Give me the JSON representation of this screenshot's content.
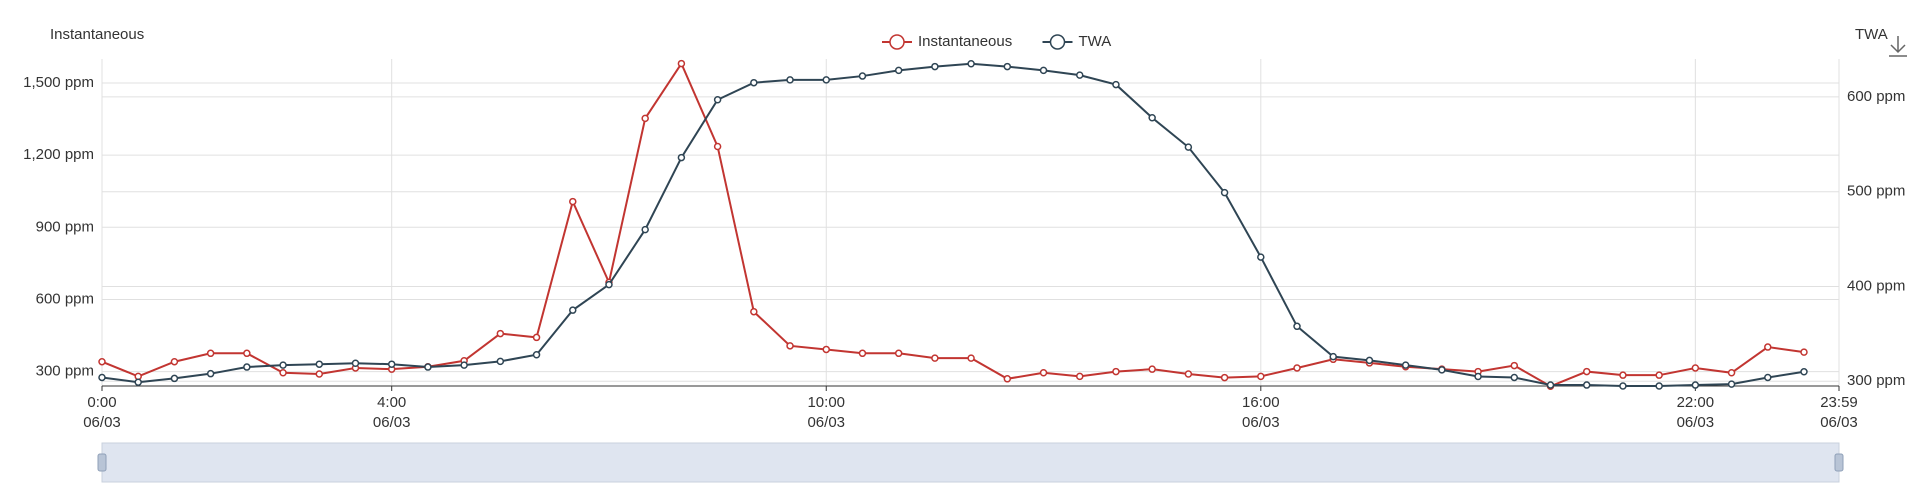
{
  "chart_data": {
    "type": "line",
    "y_axis_title": "Instantaneous",
    "y2_axis_title": "TWA",
    "x": [
      0,
      30,
      60,
      90,
      120,
      150,
      180,
      210,
      240,
      270,
      300,
      330,
      360,
      390,
      420,
      450,
      480,
      510,
      540,
      570,
      600,
      630,
      660,
      690,
      720,
      750,
      780,
      810,
      840,
      870,
      900,
      930,
      960,
      990,
      1020,
      1050,
      1080,
      1110,
      1140,
      1170,
      1200,
      1230,
      1260,
      1290,
      1320,
      1350,
      1380,
      1410
    ],
    "xlim": [
      0,
      1439
    ],
    "xticks": [
      {
        "value": 0,
        "label": "0:00\n06/03"
      },
      {
        "value": 240,
        "label": "4:00\n06/03"
      },
      {
        "value": 600,
        "label": "10:00\n06/03"
      },
      {
        "value": 960,
        "label": "16:00\n06/03"
      },
      {
        "value": 1320,
        "label": "22:00\n06/03"
      },
      {
        "value": 1439,
        "label": "23:59\n06/03"
      }
    ],
    "ylim": [
      240,
      1600
    ],
    "yticks": [
      {
        "value": 300,
        "label": "300 ppm"
      },
      {
        "value": 600,
        "label": "600 ppm"
      },
      {
        "value": 900,
        "label": "900 ppm"
      },
      {
        "value": 1200,
        "label": "1,200 ppm"
      },
      {
        "value": 1500,
        "label": "1,500 ppm"
      }
    ],
    "y2lim": [
      295,
      640
    ],
    "y2ticks": [
      {
        "value": 300,
        "label": "300 ppm"
      },
      {
        "value": 400,
        "label": "400 ppm"
      },
      {
        "value": 500,
        "label": "500 ppm"
      },
      {
        "value": 600,
        "label": "600 ppm"
      }
    ],
    "grid": true,
    "legend": "top",
    "series": [
      {
        "name": "Instantaneous",
        "color": "#c23531",
        "values": [
          341,
          280,
          341,
          376,
          376,
          295,
          290,
          315,
          310,
          320,
          345,
          458,
          442,
          1007,
          671,
          1353,
          1581,
          1236,
          549,
          407,
          392,
          376,
          376,
          356,
          356,
          270,
          295,
          280,
          300,
          310,
          290,
          275,
          280,
          315,
          351,
          336,
          320,
          310,
          300,
          325,
          239,
          300,
          285,
          285,
          315,
          295,
          402,
          381
        ]
      },
      {
        "name": "TWA",
        "color": "#2f4554",
        "axis": "y2",
        "values": [
          304,
          299,
          303,
          308,
          315,
          317,
          318,
          319,
          318,
          315,
          317,
          321,
          328,
          375,
          402,
          460,
          536,
          597,
          615,
          618,
          618,
          622,
          628,
          632,
          635,
          632,
          628,
          623,
          613,
          578,
          547,
          499,
          431,
          358,
          326,
          322,
          317,
          312,
          305,
          304,
          296,
          296,
          295,
          295,
          296,
          297,
          304,
          310
        ]
      }
    ]
  }
}
